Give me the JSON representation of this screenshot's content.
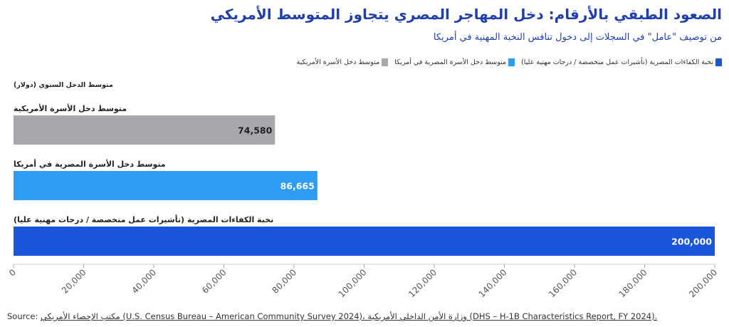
{
  "title": "الصعود الطبقي بالأرقام: دخل المهاجر المصري يتجاوز المتوسط الأمريكي",
  "subtitle": "من توصيف \"عامل\" في السجلات إلى دخول تنافس النخبة المهنية في أمريكا",
  "source": {
    "label": "Source:",
    "text": "مكتب الإحصاء الأمريكي (U.S. Census Bureau – American Community Survey 2024)، وزارة الأمن الداخلي الأمريكية (DHS – H-1B Characteristics Report, FY 2024)."
  },
  "colors": {
    "series_0": "#a6a8ab",
    "series_1": "#2e9cf2",
    "series_2": "#1a56db",
    "title": "#1f3fae"
  },
  "chart_data": {
    "type": "bar",
    "orientation": "horizontal",
    "ylabel": "متوسط الدخل السنوي (دولار)",
    "xlim": [
      0,
      200000
    ],
    "x_ticks": [
      "0",
      "20,000",
      "40,000",
      "60,000",
      "80,000",
      "100,000",
      "120,000",
      "140,000",
      "160,000",
      "180,000",
      "200,000"
    ],
    "grid": false,
    "legend_position": "top-right",
    "categories": [
      "متوسط دخل الأسرة الأمريكية",
      "متوسط دخل الأسرة المصرية في أمريكا",
      "نخبة الكفاءات المصرية (تأشيرات عمل متخصصة / درجات مهنية عليا)"
    ],
    "values": [
      74580,
      86665,
      200000
    ],
    "value_labels": [
      "74,580",
      "86,665",
      "200,000"
    ],
    "legend": [
      "نخبة الكفاءات المصرية (تأشيرات عمل متخصصة / درجات مهنية عليا)",
      "متوسط دخل الأسرة المصرية في أمريكا",
      "متوسط دخل الأسرة الأمريكية"
    ]
  }
}
